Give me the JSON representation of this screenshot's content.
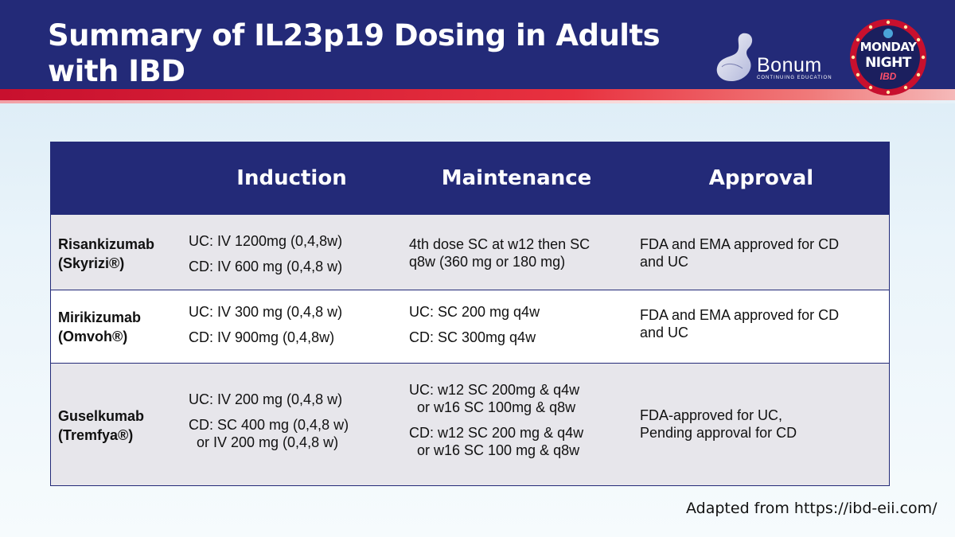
{
  "title": "Summary of IL23p19 Dosing in Adults with IBD",
  "logo_bonum": {
    "name": "Bonum",
    "tagline": "CONTINUING EDUCATION"
  },
  "logo_event": {
    "line1": "MONDAY",
    "line2": "NIGHT",
    "line3": "IBD"
  },
  "colors": {
    "navy": "#232a78",
    "red": "#c8102e",
    "row_shade": "#e7e6eb"
  },
  "table": {
    "headers": [
      "Induction",
      "Maintenance",
      "Approval"
    ],
    "rows": [
      {
        "drug": "Risankizumab",
        "brand": "(Skyrizi®)",
        "induction": [
          "UC: IV 1200mg (0,4,8w)",
          "CD: IV 600 mg (0,4,8 w)"
        ],
        "maintenance": [
          "4th dose SC at w12 then SC",
          "q8w (360 mg or 180 mg)"
        ],
        "approval": [
          "FDA and EMA approved for CD",
          "and UC"
        ]
      },
      {
        "drug": "Mirikizumab",
        "brand": "(Omvoh®)",
        "induction": [
          "UC: IV 300 mg (0,4,8 w)",
          "CD: IV 900mg (0,4,8w)"
        ],
        "maintenance": [
          "UC: SC 200 mg q4w",
          "CD: SC 300mg q4w"
        ],
        "approval": [
          "FDA and EMA approved for CD",
          "and UC"
        ]
      },
      {
        "drug": "Guselkumab",
        "brand": "(Tremfya®)",
        "induction": [
          "UC: IV 200 mg (0,4,8 w)",
          "CD: SC 400 mg (0,4,8 w)",
          "or IV 200 mg (0,4,8 w)"
        ],
        "maintenance": [
          "UC: w12 SC 200mg & q4w",
          "or w16 SC 100mg & q8w",
          "CD: w12 SC 200 mg & q4w",
          "or w16 SC 100 mg & q8w"
        ],
        "approval": [
          "FDA-approved for UC,",
          "Pending approval for CD"
        ]
      }
    ]
  },
  "source": "Adapted from https://ibd-eii.com/"
}
